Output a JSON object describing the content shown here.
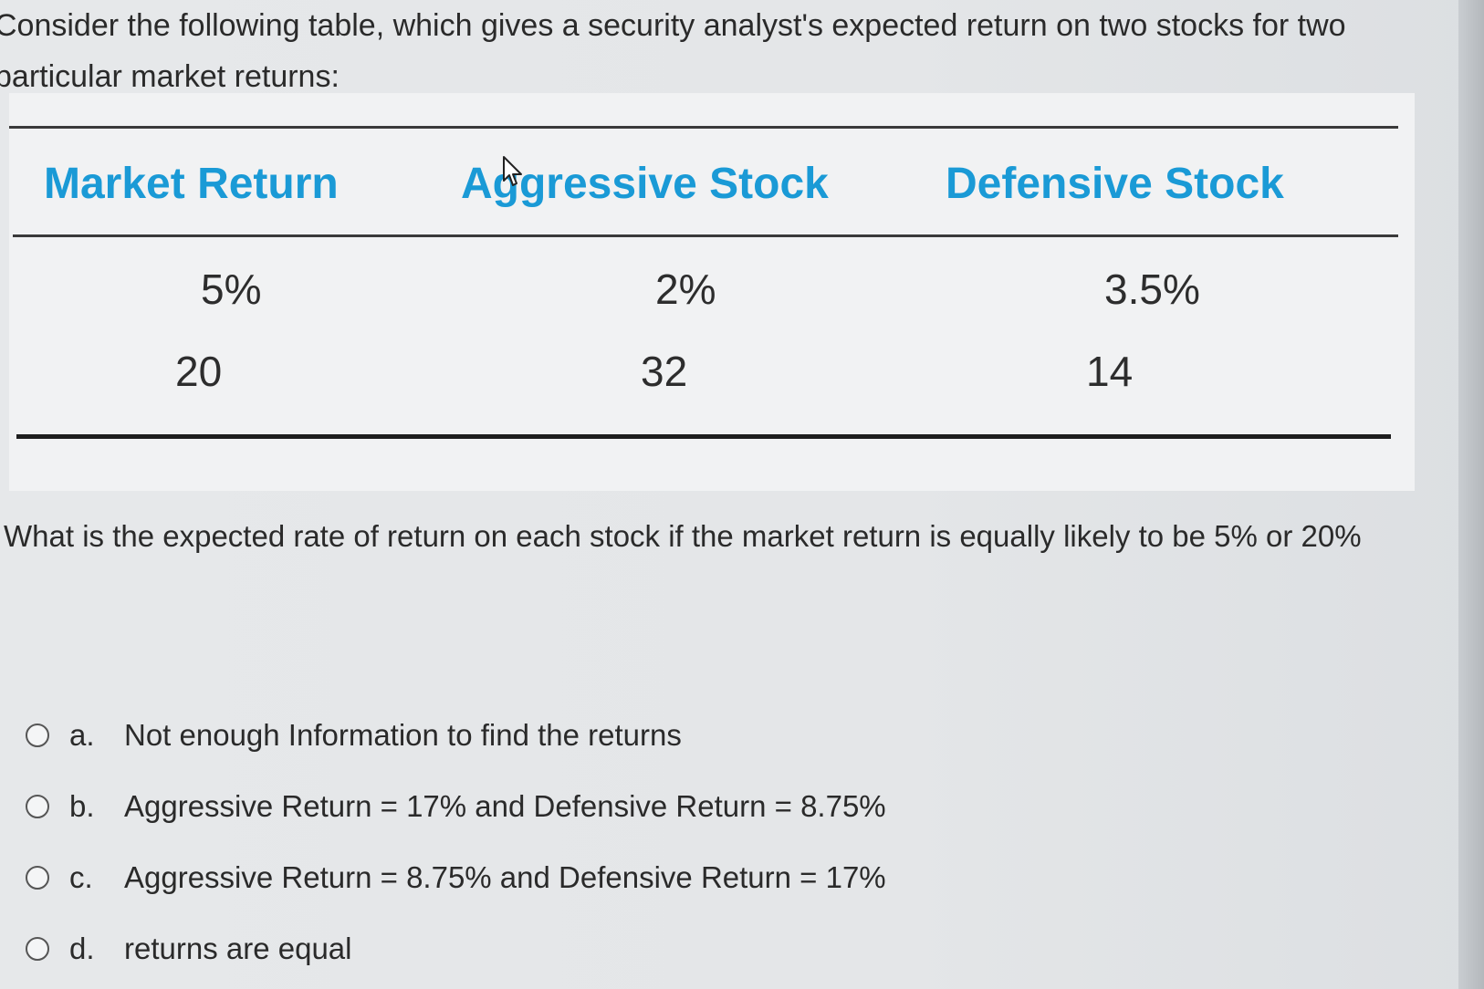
{
  "question": {
    "intro": "Consider the following table, which gives a security analyst's expected return on two stocks for two particular market returns:",
    "prompt": "What is the expected rate of return on each stock if the market return is equally likely to be 5% or 20%"
  },
  "table": {
    "headers": [
      "Market Return",
      "Aggressive Stock",
      "Defensive Stock"
    ],
    "rows": [
      [
        "5%",
        "2%",
        "3.5%"
      ],
      [
        "20",
        "32",
        "14"
      ]
    ]
  },
  "options": [
    {
      "letter": "a.",
      "text": "Not enough Information  to find the returns"
    },
    {
      "letter": "b.",
      "text": "Aggressive Return  = 17% and Defensive Return = 8.75%"
    },
    {
      "letter": "c.",
      "text": "Aggressive Return  = 8.75% and Defensive Return = 17%"
    },
    {
      "letter": "d.",
      "text": "returns are equal"
    }
  ],
  "icons": {
    "cursor": "mouse-pointer-icon",
    "radio": "radio-button-icon"
  },
  "colors": {
    "header_blue": "#1a9ad6",
    "text": "#2a2a2a"
  }
}
